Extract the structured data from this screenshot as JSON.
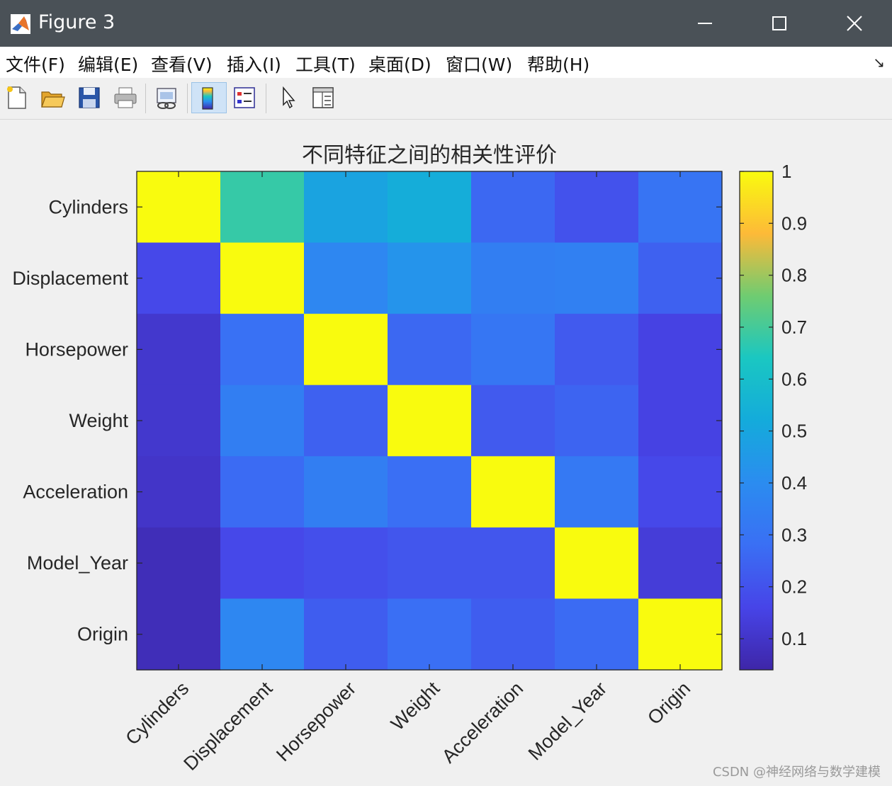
{
  "window": {
    "title": "Figure 3",
    "icons": {
      "app": "matlab-logo-icon",
      "minimize": "minimize-icon",
      "maximize": "maximize-icon",
      "close": "close-icon"
    }
  },
  "menu": {
    "items": [
      "文件(F)",
      "编辑(E)",
      "查看(V)",
      "插入(I)",
      "工具(T)",
      "桌面(D)",
      "窗口(W)",
      "帮助(H)"
    ],
    "overflow_icon": "dock-arrow-icon"
  },
  "toolbar": {
    "items": [
      {
        "icon": "new-figure-icon",
        "pressed": false
      },
      {
        "icon": "open-file-icon",
        "pressed": false
      },
      {
        "icon": "save-icon",
        "pressed": false
      },
      {
        "icon": "print-icon",
        "pressed": false
      },
      {
        "icon": "link-plot-icon",
        "pressed": false
      },
      {
        "icon": "insert-colorbar-icon",
        "pressed": true
      },
      {
        "icon": "insert-legend-icon",
        "pressed": false
      },
      {
        "icon": "pointer-icon",
        "pressed": false
      },
      {
        "icon": "property-inspector-icon",
        "pressed": false
      }
    ]
  },
  "chart_data": {
    "type": "heatmap",
    "title": "不同特征之间的相关性评价",
    "x_categories": [
      "Cylinders",
      "Displacement",
      "Horsepower",
      "Weight",
      "Acceleration",
      "Model_Year",
      "Origin"
    ],
    "y_categories": [
      "Cylinders",
      "Displacement",
      "Horsepower",
      "Weight",
      "Acceleration",
      "Model_Year",
      "Origin"
    ],
    "values": [
      [
        1.0,
        0.68,
        0.49,
        0.53,
        0.26,
        0.2,
        0.3
      ],
      [
        0.17,
        1.0,
        0.38,
        0.43,
        0.34,
        0.35,
        0.24
      ],
      [
        0.11,
        0.29,
        1.0,
        0.26,
        0.31,
        0.22,
        0.15
      ],
      [
        0.11,
        0.34,
        0.24,
        1.0,
        0.22,
        0.25,
        0.15
      ],
      [
        0.1,
        0.27,
        0.34,
        0.28,
        1.0,
        0.32,
        0.17
      ],
      [
        0.07,
        0.17,
        0.19,
        0.21,
        0.21,
        1.0,
        0.13
      ],
      [
        0.07,
        0.38,
        0.23,
        0.28,
        0.23,
        0.27,
        1.0
      ]
    ],
    "colormap": "parula",
    "colorbar": {
      "ticks": [
        0.1,
        0.2,
        0.3,
        0.4,
        0.5,
        0.6,
        0.7,
        0.8,
        0.9,
        1
      ],
      "range": [
        0.04,
        1
      ]
    }
  },
  "watermark": "CSDN @神经网络与数学建模"
}
